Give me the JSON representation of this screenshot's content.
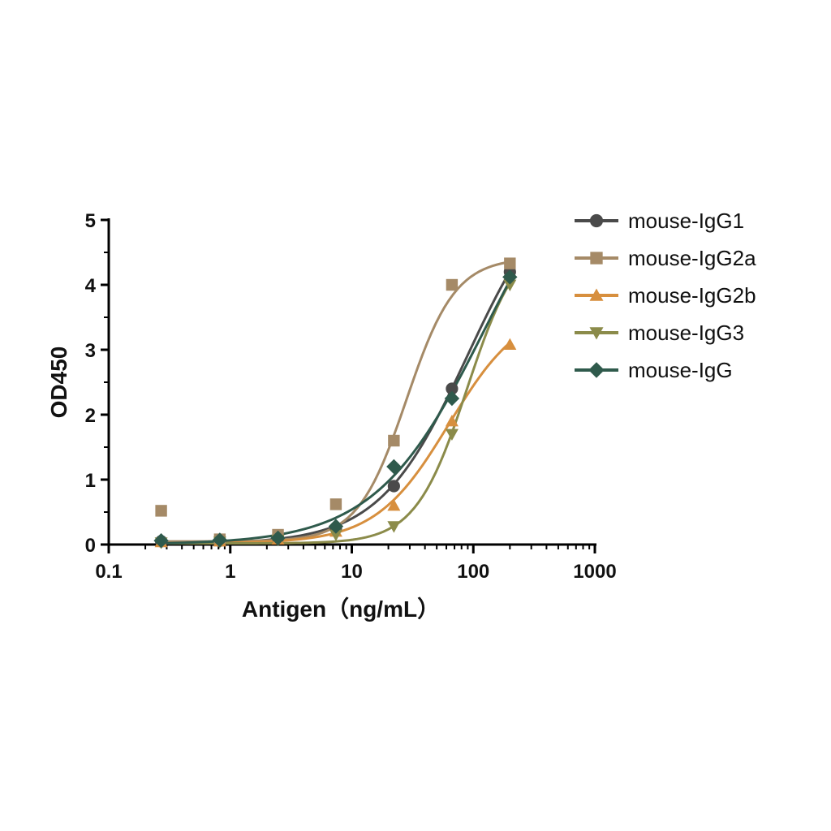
{
  "chart_data": {
    "type": "scatter",
    "xlabel": "Antigen（ng/mL）",
    "ylabel": "OD450",
    "xscale": "log",
    "xlim": [
      0.1,
      1000
    ],
    "ylim": [
      0,
      5
    ],
    "xticks": [
      0.1,
      1,
      10,
      100,
      1000
    ],
    "xtick_labels": [
      "0.1",
      "1",
      "10",
      "100",
      "1000"
    ],
    "yticks": [
      0,
      1,
      2,
      3,
      4,
      5
    ],
    "ytick_labels": [
      "0",
      "1",
      "2",
      "3",
      "4",
      "5"
    ],
    "grid": false,
    "legend_position": "right",
    "fit": "sigmoidal curve per series",
    "x": [
      0.27,
      0.82,
      2.47,
      7.4,
      22.2,
      66.7,
      200
    ],
    "series": [
      {
        "name": "mouse-IgG1",
        "marker": "circle",
        "color": "#4a4a4a",
        "values": [
          0.05,
          0.06,
          0.1,
          0.25,
          0.9,
          2.4,
          4.2
        ]
      },
      {
        "name": "mouse-IgG2a",
        "marker": "square",
        "color": "#a58a67",
        "values": [
          0.52,
          0.08,
          0.15,
          0.62,
          1.6,
          4.0,
          4.33
        ]
      },
      {
        "name": "mouse-IgG2b",
        "marker": "triangle-up",
        "color": "#d78f3e",
        "values": [
          0.04,
          0.05,
          0.08,
          0.2,
          0.6,
          1.9,
          3.08
        ]
      },
      {
        "name": "mouse-IgG3",
        "marker": "triangle-down",
        "color": "#8b8b4a",
        "values": [
          0.03,
          0.04,
          0.07,
          0.15,
          0.28,
          1.7,
          4.0
        ]
      },
      {
        "name": "mouse-IgG",
        "marker": "diamond",
        "color": "#2f5a4c",
        "values": [
          0.06,
          0.07,
          0.1,
          0.28,
          1.2,
          2.25,
          4.12
        ]
      }
    ]
  }
}
